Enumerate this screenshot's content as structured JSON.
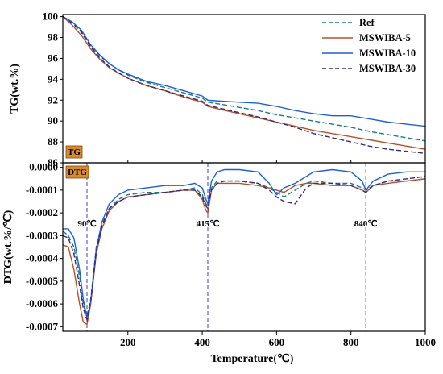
{
  "chart_data": [
    {
      "type": "line",
      "panel": "TG",
      "xlabel": "",
      "ylabel": "TG(wt.%)",
      "tag": "TG",
      "xlim": [
        25,
        1000
      ],
      "ylim": [
        86,
        100.2
      ],
      "yticks": [
        86,
        88,
        90,
        92,
        94,
        96,
        98,
        100
      ],
      "ytick_labels": [
        "86",
        "88",
        "90",
        "92",
        "94",
        "96",
        "98",
        "100"
      ],
      "legend": {
        "position": "top-right"
      },
      "series": [
        {
          "name": "Ref",
          "color": "#1a7a8c",
          "dash": "dashed",
          "x": [
            25,
            50,
            75,
            100,
            125,
            150,
            175,
            200,
            250,
            300,
            350,
            400,
            415,
            450,
            500,
            550,
            600,
            650,
            700,
            750,
            800,
            850,
            900,
            950,
            1000
          ],
          "y": [
            100,
            99.5,
            98.6,
            97.2,
            96.2,
            95.5,
            94.9,
            94.4,
            93.7,
            93.2,
            92.7,
            92.2,
            91.8,
            91.6,
            91.3,
            91.0,
            90.6,
            90.3,
            90.0,
            89.7,
            89.4,
            89.0,
            88.7,
            88.4,
            88.1
          ]
        },
        {
          "name": "MSWIBA-5",
          "color": "#b5522a",
          "dash": "solid",
          "x": [
            25,
            50,
            75,
            100,
            125,
            150,
            175,
            200,
            250,
            300,
            350,
            400,
            415,
            450,
            500,
            550,
            600,
            650,
            700,
            750,
            800,
            850,
            900,
            950,
            1000
          ],
          "y": [
            100,
            99.2,
            98.2,
            96.9,
            95.9,
            95.1,
            94.6,
            94.1,
            93.4,
            92.9,
            92.3,
            91.8,
            91.4,
            91.1,
            90.7,
            90.3,
            89.9,
            89.5,
            89.1,
            88.8,
            88.5,
            88.2,
            87.9,
            87.6,
            87.3
          ]
        },
        {
          "name": "MSWIBA-10",
          "color": "#1f5fd6",
          "dash": "solid",
          "x": [
            25,
            50,
            75,
            100,
            125,
            150,
            175,
            200,
            250,
            300,
            350,
            400,
            415,
            450,
            500,
            550,
            600,
            650,
            700,
            750,
            800,
            850,
            900,
            950,
            1000
          ],
          "y": [
            100,
            99.5,
            98.7,
            97.3,
            96.3,
            95.5,
            94.9,
            94.5,
            93.8,
            93.4,
            92.9,
            92.4,
            92.0,
            91.9,
            91.8,
            91.7,
            91.4,
            91.0,
            90.7,
            90.5,
            90.5,
            90.2,
            89.9,
            89.7,
            89.5
          ]
        },
        {
          "name": "MSWIBA-30",
          "color": "#3a2a7a",
          "dash": "dashed",
          "x": [
            25,
            50,
            75,
            100,
            125,
            150,
            175,
            200,
            250,
            300,
            350,
            400,
            415,
            450,
            500,
            550,
            600,
            650,
            700,
            750,
            800,
            850,
            900,
            950,
            1000
          ],
          "y": [
            100,
            99.4,
            98.5,
            97.1,
            96.0,
            95.2,
            94.6,
            94.1,
            93.4,
            92.9,
            92.4,
            91.9,
            91.5,
            91.2,
            90.8,
            90.4,
            89.9,
            89.4,
            88.8,
            88.4,
            88.0,
            87.6,
            87.3,
            87.1,
            86.9
          ]
        }
      ]
    },
    {
      "type": "line",
      "panel": "DTG",
      "xlabel": "Temperature(℃)",
      "ylabel": "DTG(wt.%/℃)",
      "tag": "DTG",
      "xlim": [
        25,
        1000
      ],
      "ylim": [
        -0.00072,
        2e-05
      ],
      "xticks": [
        200,
        400,
        600,
        800,
        1000
      ],
      "xtick_labels": [
        "200",
        "400",
        "600",
        "800",
        "1000"
      ],
      "yticks": [
        0,
        -0.0001,
        -0.0002,
        -0.0003,
        -0.0004,
        -0.0005,
        -0.0006,
        -0.0007
      ],
      "ytick_labels": [
        "0.0000",
        "-0.0001",
        "-0.0002",
        "-0.0003",
        "-0.0004",
        "-0.0005",
        "-0.0006",
        "-0.0007"
      ],
      "vlines": [
        90,
        415,
        840
      ],
      "annotations": [
        "90℃",
        "415℃",
        "840℃"
      ],
      "series": [
        {
          "name": "Ref",
          "color": "#1a7a8c",
          "dash": "dashed",
          "x": [
            25,
            40,
            55,
            70,
            80,
            90,
            100,
            115,
            130,
            150,
            175,
            200,
            250,
            300,
            350,
            380,
            400,
            410,
            415,
            425,
            440,
            460,
            500,
            550,
            580,
            600,
            620,
            650,
            680,
            700,
            750,
            800,
            830,
            840,
            860,
            900,
            950,
            1000
          ],
          "y": [
            -0.00028,
            -0.0003,
            -0.00035,
            -0.00048,
            -0.0006,
            -0.00066,
            -0.00058,
            -0.00035,
            -0.00025,
            -0.00018,
            -0.00014,
            -0.00012,
            -0.00011,
            -0.00011,
            -0.0001,
            -9e-05,
            -0.00012,
            -0.00016,
            -0.00017,
            -9e-05,
            -6e-05,
            -6e-05,
            -6e-05,
            -7e-05,
            -9e-05,
            -0.00011,
            -0.00013,
            -0.0001,
            -7e-05,
            -6e-05,
            -7e-05,
            -7e-05,
            -9e-05,
            -0.0001,
            -8e-05,
            -6e-05,
            -6e-05,
            -5e-05
          ]
        },
        {
          "name": "MSWIBA-5",
          "color": "#b5522a",
          "dash": "solid",
          "x": [
            25,
            40,
            55,
            70,
            80,
            90,
            100,
            115,
            130,
            150,
            175,
            200,
            250,
            300,
            350,
            380,
            400,
            410,
            415,
            425,
            440,
            460,
            500,
            550,
            580,
            600,
            620,
            650,
            680,
            700,
            750,
            800,
            830,
            840,
            860,
            900,
            950,
            1000
          ],
          "y": [
            -0.00034,
            -0.00035,
            -0.00045,
            -0.0006,
            -0.00068,
            -0.00069,
            -0.0006,
            -0.00038,
            -0.00027,
            -0.00019,
            -0.00015,
            -0.00013,
            -0.00012,
            -0.00011,
            -0.0001,
            -0.0001,
            -0.00014,
            -0.00019,
            -0.0002,
            -0.0001,
            -7e-05,
            -7e-05,
            -7e-05,
            -8e-05,
            -9e-05,
            -0.0001,
            -0.00011,
            -8e-05,
            -7e-05,
            -7e-05,
            -8e-05,
            -8e-05,
            -0.0001,
            -0.00011,
            -8e-05,
            -7e-05,
            -6e-05,
            -5e-05
          ]
        },
        {
          "name": "MSWIBA-10",
          "color": "#1f5fd6",
          "dash": "solid",
          "x": [
            25,
            40,
            55,
            70,
            80,
            90,
            100,
            115,
            130,
            150,
            175,
            200,
            250,
            300,
            350,
            380,
            400,
            410,
            415,
            425,
            440,
            460,
            500,
            550,
            580,
            600,
            620,
            650,
            680,
            700,
            750,
            800,
            830,
            840,
            860,
            900,
            950,
            1000
          ],
          "y": [
            -0.00027,
            -0.00027,
            -0.00031,
            -0.00045,
            -0.00058,
            -0.00066,
            -0.00059,
            -0.00036,
            -0.00024,
            -0.00016,
            -0.00012,
            -0.0001,
            -9e-05,
            -8e-05,
            -8e-05,
            -7e-05,
            -9e-05,
            -0.00014,
            -0.00016,
            -6e-05,
            -2e-05,
            -1e-05,
            -1e-05,
            -2e-05,
            -7e-05,
            -0.00012,
            -9e-05,
            -7e-05,
            -4e-05,
            -2e-05,
            -1e-05,
            -2e-05,
            -6e-05,
            -0.0001,
            -6e-05,
            -3e-05,
            -2e-05,
            -2e-05
          ]
        },
        {
          "name": "MSWIBA-30",
          "color": "#3a2a7a",
          "dash": "dashed",
          "x": [
            25,
            40,
            55,
            70,
            80,
            90,
            100,
            115,
            130,
            150,
            175,
            200,
            250,
            300,
            350,
            380,
            400,
            410,
            415,
            425,
            440,
            460,
            500,
            550,
            580,
            600,
            620,
            650,
            680,
            700,
            750,
            800,
            830,
            840,
            860,
            900,
            950,
            1000
          ],
          "y": [
            -0.0003,
            -0.00031,
            -0.00038,
            -0.00052,
            -0.00062,
            -0.00067,
            -0.00059,
            -0.00037,
            -0.00026,
            -0.00018,
            -0.00015,
            -0.00013,
            -0.00012,
            -0.00011,
            -0.0001,
            -0.0001,
            -0.00013,
            -0.00017,
            -0.00018,
            -0.0001,
            -7e-05,
            -6e-05,
            -6e-05,
            -7e-05,
            -0.0001,
            -0.00013,
            -0.00015,
            -0.00016,
            -9e-05,
            -7e-05,
            -7e-05,
            -8e-05,
            -0.0001,
            -0.00011,
            -8e-05,
            -6e-05,
            -5e-05,
            -4e-05
          ]
        }
      ]
    }
  ]
}
